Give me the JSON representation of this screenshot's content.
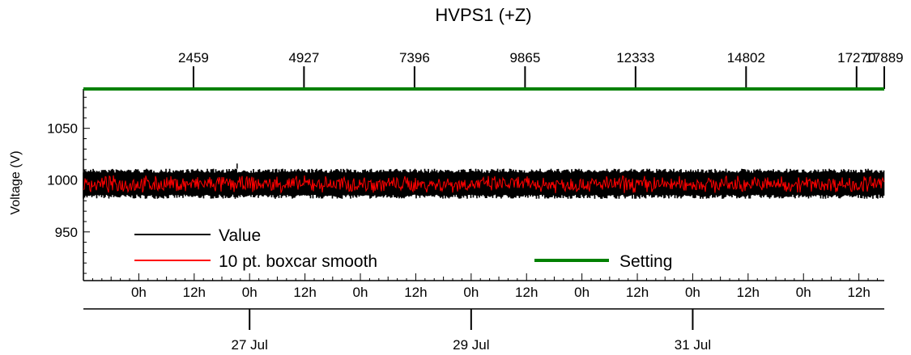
{
  "chart_data": {
    "type": "line",
    "title": "HVPS1 (+Z)",
    "ylabel": "Voltage (V)",
    "ylim": [
      903,
      1088
    ],
    "yticks": [
      950,
      1000,
      1050
    ],
    "top_axis": {
      "range": [
        0,
        17889
      ],
      "ticks": [
        "2459",
        "4927",
        "7396",
        "9865",
        "12333",
        "14802",
        "17270",
        "17889"
      ]
    },
    "time_axis": {
      "range_hours": [
        0,
        173.5
      ],
      "hour_labels": [
        "0h",
        "12h",
        "0h",
        "12h",
        "0h",
        "12h",
        "0h",
        "12h",
        "0h",
        "12h",
        "0h",
        "12h",
        "0h",
        "12h"
      ],
      "date_labels": [
        "27 Jul",
        "29 Jul",
        "31 Jul"
      ]
    },
    "series": [
      {
        "name": "Value",
        "color": "#000000",
        "band": [
          982,
          1011
        ],
        "mean": 996,
        "spike": {
          "x_hours": 33.3,
          "y": 1016
        }
      },
      {
        "name": "10 pt. boxcar smooth",
        "color": "#ff0000",
        "band": [
          987,
          1006
        ],
        "mean": 996
      },
      {
        "name": "Setting",
        "color": "#008000",
        "value": 1088
      }
    ],
    "legend": {
      "placement": "lower-left",
      "entries": [
        "Value",
        "10 pt. boxcar smooth",
        "Setting"
      ]
    }
  }
}
